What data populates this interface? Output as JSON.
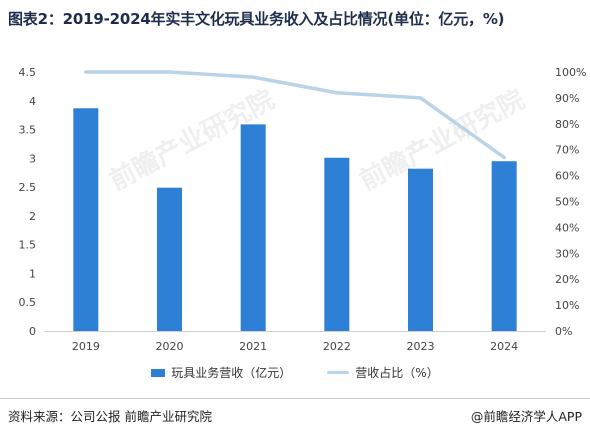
{
  "title": "图表2：2019-2024年实丰文化玩具业务收入及占比情况(单位：亿元，%)",
  "source": "资料来源：公司公报 前瞻产业研究院",
  "brand": "@前瞻经济学人APP",
  "watermark": "前瞻产业研究院",
  "colors": {
    "bar": "#2e7fd6",
    "line": "#b9d3e8"
  },
  "chart_data": {
    "type": "bar",
    "categories": [
      "2019",
      "2020",
      "2021",
      "2022",
      "2023",
      "2024"
    ],
    "series": [
      {
        "name": "玩具业务营收（亿元）",
        "type": "bar",
        "axis": "left",
        "values": [
          3.87,
          2.49,
          3.59,
          3.01,
          2.82,
          2.95
        ]
      },
      {
        "name": "营收占比（%）",
        "type": "line",
        "axis": "right",
        "values": [
          100,
          100,
          98,
          92,
          90,
          67
        ]
      }
    ],
    "yleft": {
      "ylim": [
        0,
        4.5
      ],
      "ticks": [
        "0",
        "0.5",
        "1",
        "1.5",
        "2",
        "2.5",
        "3",
        "3.5",
        "4",
        "4.5"
      ]
    },
    "yright": {
      "ylim": [
        0,
        100
      ],
      "ticks": [
        "0%",
        "10%",
        "20%",
        "30%",
        "40%",
        "50%",
        "60%",
        "70%",
        "80%",
        "90%",
        "100%"
      ]
    },
    "grid": false,
    "legend": "bottom"
  }
}
